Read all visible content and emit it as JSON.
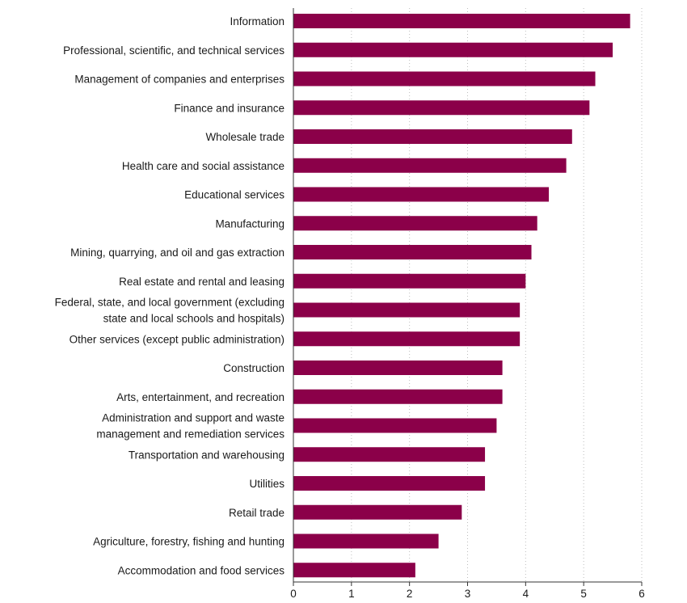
{
  "chart_data": {
    "type": "bar",
    "orientation": "horizontal",
    "title": "",
    "xlabel": "",
    "ylabel": "",
    "xlim": [
      0,
      6
    ],
    "x_ticks": [
      0,
      1,
      2,
      3,
      4,
      5,
      6
    ],
    "grid": true,
    "bar_color": "#8b0049",
    "categories": [
      [
        "Information"
      ],
      [
        "Professional, scientific, and technical services"
      ],
      [
        "Management of companies and enterprises"
      ],
      [
        "Finance and insurance"
      ],
      [
        "Wholesale trade"
      ],
      [
        "Health care and social assistance"
      ],
      [
        "Educational services"
      ],
      [
        "Manufacturing"
      ],
      [
        "Mining, quarrying, and oil and gas extraction"
      ],
      [
        "Real estate and rental and leasing"
      ],
      [
        "Federal, state, and local government (excluding",
        "state and local schools and hospitals)"
      ],
      [
        "Other services (except public administration)"
      ],
      [
        "Construction"
      ],
      [
        "Arts, entertainment, and recreation"
      ],
      [
        "Administration and support and waste",
        "management and remediation services"
      ],
      [
        "Transportation and warehousing"
      ],
      [
        "Utilities"
      ],
      [
        "Retail trade"
      ],
      [
        "Agriculture, forestry, fishing and hunting"
      ],
      [
        "Accommodation and food services"
      ]
    ],
    "values": [
      5.8,
      5.5,
      5.2,
      5.1,
      4.8,
      4.7,
      4.4,
      4.2,
      4.1,
      4.0,
      3.9,
      3.9,
      3.6,
      3.6,
      3.5,
      3.3,
      3.3,
      2.9,
      2.5,
      2.1
    ]
  }
}
